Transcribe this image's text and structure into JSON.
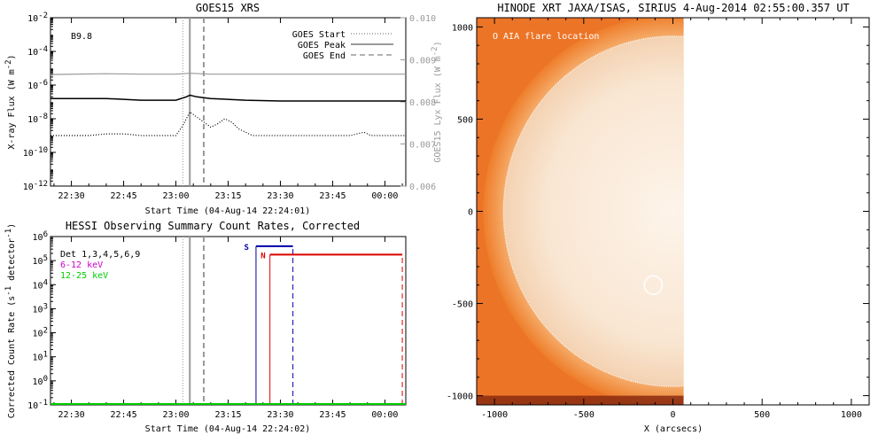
{
  "chart_data": [
    {
      "type": "line",
      "title": "GOES15 XRS",
      "xlabel": "Start Time (04-Aug-14 22:24:01)",
      "ylabel": "X-ray Flux (W m^-2)",
      "y2label": "GOES15 Lyx Flux (W m^-2)",
      "annotation": "B9.8",
      "x_ticks": [
        "22:30",
        "22:45",
        "23:00",
        "23:15",
        "23:30",
        "23:45",
        "00:00"
      ],
      "y_ticks": [
        "10^-2",
        "10^-4",
        "10^-6",
        "10^-8",
        "10^-10",
        "10^-12"
      ],
      "y2_ticks": [
        "0.010",
        "0.009",
        "0.008",
        "0.007",
        "0.006"
      ],
      "ylim": [
        -12,
        -2
      ],
      "y2lim": [
        0.006,
        0.01
      ],
      "xlim": [
        -6,
        96
      ],
      "y_scale": "log",
      "legend": [
        {
          "name": "GOES Start",
          "style": "dotted"
        },
        {
          "name": "GOES Peak",
          "style": "solid"
        },
        {
          "name": "GOES End",
          "style": "dashed"
        }
      ],
      "events": {
        "start": 32,
        "peak": 34,
        "end": 38
      },
      "series": [
        {
          "name": "long",
          "color": "#000000",
          "x": [
            -6,
            0,
            10,
            20,
            30,
            33,
            34,
            36,
            40,
            50,
            60,
            70,
            80,
            90,
            96
          ],
          "y": [
            -6.8,
            -6.8,
            -6.8,
            -6.9,
            -6.9,
            -6.7,
            -6.6,
            -6.7,
            -6.8,
            -6.9,
            -6.95,
            -6.95,
            -6.95,
            -6.95,
            -6.95
          ]
        },
        {
          "name": "lya",
          "color": "#999999",
          "x": [
            -6,
            10,
            20,
            30,
            34,
            40,
            60,
            80,
            96
          ],
          "y": [
            0.00865,
            0.00867,
            0.00866,
            0.00866,
            0.00868,
            0.00866,
            0.00866,
            0.00866,
            0.00866
          ]
        },
        {
          "name": "short",
          "color": "#000000",
          "style": "dotted",
          "x": [
            -6,
            5,
            10,
            15,
            20,
            25,
            30,
            32,
            34,
            36,
            38,
            40,
            42,
            44,
            46,
            48,
            50,
            52,
            54,
            56,
            58,
            60,
            70,
            80,
            84,
            86,
            96
          ],
          "y": [
            -9.0,
            -9.0,
            -8.9,
            -8.9,
            -9.0,
            -9.0,
            -9.0,
            -8.4,
            -7.6,
            -7.9,
            -8.2,
            -8.5,
            -8.3,
            -8.0,
            -8.2,
            -8.6,
            -8.8,
            -9.0,
            -9.0,
            -9.0,
            -9.0,
            -9.0,
            -9.0,
            -9.0,
            -8.8,
            -9.0,
            -9.0
          ]
        }
      ]
    },
    {
      "type": "line",
      "title": "HESSI Observing Summary Count Rates, Corrected",
      "xlabel": "Start Time (04-Aug-14 22:24:02)",
      "ylabel": "Corrected Count Rate (s^-1 detector^-1)",
      "x_ticks": [
        "22:30",
        "22:45",
        "23:00",
        "23:15",
        "23:30",
        "23:45",
        "00:00"
      ],
      "y_ticks": [
        "10^6",
        "10^5",
        "10^4",
        "10^3",
        "10^2",
        "10^1",
        "10^0",
        "10^-1"
      ],
      "ylim": [
        -1,
        6
      ],
      "y_scale": "log",
      "legend": [
        {
          "name": "Det 1,3,4,5,6,9",
          "color": "#000000"
        },
        {
          "name": "6-12 keV",
          "color": "#cc00cc"
        },
        {
          "name": "12-25 keV",
          "color": "#00cc00"
        }
      ],
      "saa": {
        "label": "S",
        "start": 53.0,
        "end": 63.6,
        "color": "#0000aa"
      },
      "night": {
        "label": "N",
        "start": 57.0,
        "end": 95.0,
        "color": "#dd0000"
      },
      "series": [
        {
          "name": "12-25 keV",
          "color": "#00cc00",
          "x": [
            -6,
            96
          ],
          "y": [
            -1,
            -1
          ]
        }
      ]
    },
    {
      "type": "heatmap",
      "title": "HINODE XRT JAXA/ISAS, SIRIUS  4-Aug-2014 02:55:00.357 UT",
      "xlabel": "X (arcsecs)",
      "legend_text": "O AIA flare location",
      "x_ticks": [
        "-1000",
        "-500",
        "0",
        "500",
        "1000"
      ],
      "y_ticks": [
        "1000",
        "500",
        "0",
        "-500",
        "-1000"
      ],
      "xlim": [
        -1100,
        1100
      ],
      "ylim": [
        -1050,
        1050
      ],
      "flare_location": {
        "x": -110,
        "y": -400,
        "radius": 50
      },
      "image_extent": {
        "x0": -1100,
        "x1": 60,
        "y0": -1050,
        "y1": 1050
      },
      "solar_radius": 950
    }
  ]
}
